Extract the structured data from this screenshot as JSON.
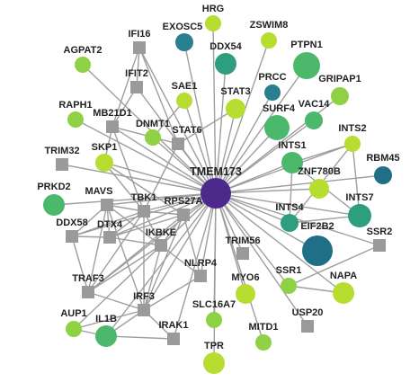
{
  "colors": {
    "hub": "#4b2a8c",
    "edge": "#9e9e9e",
    "square": "#9a9a9a",
    "yellow": "#b6dd2f",
    "lime": "#8fd144",
    "green": "#4cb86c",
    "teal_green": "#2e9e7e",
    "teal": "#2a7f8e",
    "dark_teal": "#1f6f86"
  },
  "hub": "TMEM173",
  "nodes": [
    {
      "id": "TMEM173",
      "label": "TMEM173",
      "shape": "circle",
      "color": "hub"
    },
    {
      "id": "HRG",
      "label": "HRG",
      "shape": "circle",
      "color": "yellow"
    },
    {
      "id": "EXOSC5",
      "label": "EXOSC5",
      "shape": "circle",
      "color": "teal"
    },
    {
      "id": "ZSWIM8",
      "label": "ZSWIM8",
      "shape": "circle",
      "color": "yellow"
    },
    {
      "id": "IFI16",
      "label": "IFI16",
      "shape": "square",
      "color": "square"
    },
    {
      "id": "DDX54",
      "label": "DDX54",
      "shape": "circle",
      "color": "teal_green"
    },
    {
      "id": "PTPN1",
      "label": "PTPN1",
      "shape": "circle",
      "color": "green"
    },
    {
      "id": "AGPAT2",
      "label": "AGPAT2",
      "shape": "circle",
      "color": "lime"
    },
    {
      "id": "IFIT2",
      "label": "IFIT2",
      "shape": "square",
      "color": "square"
    },
    {
      "id": "PRCC",
      "label": "PRCC",
      "shape": "circle",
      "color": "teal"
    },
    {
      "id": "GRIPAP1",
      "label": "GRIPAP1",
      "shape": "circle",
      "color": "lime"
    },
    {
      "id": "SAE1",
      "label": "SAE1",
      "shape": "circle",
      "color": "yellow"
    },
    {
      "id": "STAT3",
      "label": "STAT3",
      "shape": "circle",
      "color": "yellow"
    },
    {
      "id": "SURF4",
      "label": "SURF4",
      "shape": "circle",
      "color": "green"
    },
    {
      "id": "VAC14",
      "label": "VAC14",
      "shape": "circle",
      "color": "green"
    },
    {
      "id": "RAPH1",
      "label": "RAPH1",
      "shape": "circle",
      "color": "lime"
    },
    {
      "id": "MB21D1",
      "label": "MB21D1",
      "shape": "square",
      "color": "square"
    },
    {
      "id": "DNMT1",
      "label": "DNMT1",
      "shape": "circle",
      "color": "lime"
    },
    {
      "id": "STAT6",
      "label": "STAT6",
      "shape": "square",
      "color": "square"
    },
    {
      "id": "INTS1",
      "label": "INTS1",
      "shape": "circle",
      "color": "green"
    },
    {
      "id": "INTS2",
      "label": "INTS2",
      "shape": "circle",
      "color": "yellow"
    },
    {
      "id": "TRIM32",
      "label": "TRIM32",
      "shape": "square",
      "color": "square"
    },
    {
      "id": "SKP1",
      "label": "SKP1",
      "shape": "circle",
      "color": "yellow"
    },
    {
      "id": "ZNF780B",
      "label": "ZNF780B",
      "shape": "circle",
      "color": "yellow"
    },
    {
      "id": "RBM45",
      "label": "RBM45",
      "shape": "circle",
      "color": "dark_teal"
    },
    {
      "id": "PRKD2",
      "label": "PRKD2",
      "shape": "circle",
      "color": "green"
    },
    {
      "id": "MAVS",
      "label": "MAVS",
      "shape": "square",
      "color": "square"
    },
    {
      "id": "TBK1",
      "label": "TBK1",
      "shape": "square",
      "color": "square"
    },
    {
      "id": "INTS7",
      "label": "INTS7",
      "shape": "circle",
      "color": "teal_green"
    },
    {
      "id": "DDX58",
      "label": "DDX58",
      "shape": "square",
      "color": "square"
    },
    {
      "id": "DTX4",
      "label": "DTX4",
      "shape": "square",
      "color": "square"
    },
    {
      "id": "RPS27A",
      "label": "RPS27A",
      "shape": "square",
      "color": "square"
    },
    {
      "id": "INTS4",
      "label": "INTS4",
      "shape": "circle",
      "color": "teal_green"
    },
    {
      "id": "EIF2B2",
      "label": "EIF2B2",
      "shape": "circle",
      "color": "dark_teal"
    },
    {
      "id": "SSR2",
      "label": "SSR2",
      "shape": "square",
      "color": "square"
    },
    {
      "id": "IKBKE",
      "label": "IKBKE",
      "shape": "square",
      "color": "square"
    },
    {
      "id": "TRIM56",
      "label": "TRIM56",
      "shape": "square",
      "color": "square"
    },
    {
      "id": "NLRP4",
      "label": "NLRP4",
      "shape": "square",
      "color": "square"
    },
    {
      "id": "TRAF3",
      "label": "TRAF3",
      "shape": "square",
      "color": "square"
    },
    {
      "id": "SSR1",
      "label": "SSR1",
      "shape": "circle",
      "color": "lime"
    },
    {
      "id": "NAPA",
      "label": "NAPA",
      "shape": "circle",
      "color": "yellow"
    },
    {
      "id": "MYO6",
      "label": "MYO6",
      "shape": "circle",
      "color": "yellow"
    },
    {
      "id": "IRF3",
      "label": "IRF3",
      "shape": "square",
      "color": "square"
    },
    {
      "id": "AUP1",
      "label": "AUP1",
      "shape": "circle",
      "color": "lime"
    },
    {
      "id": "IL1B",
      "label": "IL1B",
      "shape": "circle",
      "color": "green"
    },
    {
      "id": "SLC16A7",
      "label": "SLC16A7",
      "shape": "circle",
      "color": "lime"
    },
    {
      "id": "USP20",
      "label": "USP20",
      "shape": "square",
      "color": "square"
    },
    {
      "id": "IRAK1",
      "label": "IRAK1",
      "shape": "square",
      "color": "square"
    },
    {
      "id": "MITD1",
      "label": "MITD1",
      "shape": "circle",
      "color": "lime"
    },
    {
      "id": "TPR",
      "label": "TPR",
      "shape": "circle",
      "color": "yellow"
    }
  ],
  "edges": [
    [
      "TMEM173",
      "HRG"
    ],
    [
      "TMEM173",
      "EXOSC5"
    ],
    [
      "TMEM173",
      "ZSWIM8"
    ],
    [
      "TMEM173",
      "IFI16"
    ],
    [
      "TMEM173",
      "DDX54"
    ],
    [
      "TMEM173",
      "PTPN1"
    ],
    [
      "TMEM173",
      "AGPAT2"
    ],
    [
      "TMEM173",
      "IFIT2"
    ],
    [
      "TMEM173",
      "PRCC"
    ],
    [
      "TMEM173",
      "GRIPAP1"
    ],
    [
      "TMEM173",
      "SAE1"
    ],
    [
      "TMEM173",
      "STAT3"
    ],
    [
      "TMEM173",
      "SURF4"
    ],
    [
      "TMEM173",
      "VAC14"
    ],
    [
      "TMEM173",
      "RAPH1"
    ],
    [
      "TMEM173",
      "MB21D1"
    ],
    [
      "TMEM173",
      "DNMT1"
    ],
    [
      "TMEM173",
      "STAT6"
    ],
    [
      "TMEM173",
      "INTS1"
    ],
    [
      "TMEM173",
      "INTS2"
    ],
    [
      "TMEM173",
      "TRIM32"
    ],
    [
      "TMEM173",
      "SKP1"
    ],
    [
      "TMEM173",
      "ZNF780B"
    ],
    [
      "TMEM173",
      "RBM45"
    ],
    [
      "TMEM173",
      "PRKD2"
    ],
    [
      "TMEM173",
      "MAVS"
    ],
    [
      "TMEM173",
      "TBK1"
    ],
    [
      "TMEM173",
      "INTS7"
    ],
    [
      "TMEM173",
      "DDX58"
    ],
    [
      "TMEM173",
      "DTX4"
    ],
    [
      "TMEM173",
      "RPS27A"
    ],
    [
      "TMEM173",
      "INTS4"
    ],
    [
      "TMEM173",
      "EIF2B2"
    ],
    [
      "TMEM173",
      "SSR2"
    ],
    [
      "TMEM173",
      "IKBKE"
    ],
    [
      "TMEM173",
      "TRIM56"
    ],
    [
      "TMEM173",
      "NLRP4"
    ],
    [
      "TMEM173",
      "TRAF3"
    ],
    [
      "TMEM173",
      "SSR1"
    ],
    [
      "TMEM173",
      "NAPA"
    ],
    [
      "TMEM173",
      "MYO6"
    ],
    [
      "TMEM173",
      "IRF3"
    ],
    [
      "TMEM173",
      "AUP1"
    ],
    [
      "TMEM173",
      "IL1B"
    ],
    [
      "TMEM173",
      "SLC16A7"
    ],
    [
      "TMEM173",
      "USP20"
    ],
    [
      "TMEM173",
      "IRAK1"
    ],
    [
      "TMEM173",
      "MITD1"
    ],
    [
      "TMEM173",
      "TPR"
    ],
    [
      "IFI16",
      "IFIT2"
    ],
    [
      "IFI16",
      "MB21D1"
    ],
    [
      "IFI16",
      "STAT6"
    ],
    [
      "IFIT2",
      "MB21D1"
    ],
    [
      "MB21D1",
      "STAT6"
    ],
    [
      "MB21D1",
      "TBK1"
    ],
    [
      "MB21D1",
      "SKP1"
    ],
    [
      "STAT3",
      "STAT6"
    ],
    [
      "SAE1",
      "DNMT1"
    ],
    [
      "STAT6",
      "TBK1"
    ],
    [
      "SKP1",
      "TBK1"
    ],
    [
      "SKP1",
      "RPS27A"
    ],
    [
      "TBK1",
      "MAVS"
    ],
    [
      "TBK1",
      "DTX4"
    ],
    [
      "TBK1",
      "RPS27A"
    ],
    [
      "TBK1",
      "IKBKE"
    ],
    [
      "TBK1",
      "IRF3"
    ],
    [
      "TBK1",
      "TRAF3"
    ],
    [
      "TBK1",
      "DDX58"
    ],
    [
      "MAVS",
      "DDX58"
    ],
    [
      "MAVS",
      "DTX4"
    ],
    [
      "MAVS",
      "TRAF3"
    ],
    [
      "MAVS",
      "IKBKE"
    ],
    [
      "MAVS",
      "IRF3"
    ],
    [
      "DDX58",
      "DTX4"
    ],
    [
      "DDX58",
      "TRAF3"
    ],
    [
      "DTX4",
      "IKBKE"
    ],
    [
      "DTX4",
      "RPS27A"
    ],
    [
      "RPS27A",
      "IKBKE"
    ],
    [
      "RPS27A",
      "NLRP4"
    ],
    [
      "RPS27A",
      "IRF3"
    ],
    [
      "RPS27A",
      "TRAF3"
    ],
    [
      "IKBKE",
      "IRF3"
    ],
    [
      "IKBKE",
      "TRAF3"
    ],
    [
      "IKBKE",
      "NLRP4"
    ],
    [
      "TRAF3",
      "IRF3"
    ],
    [
      "IRF3",
      "IRAK1"
    ],
    [
      "IRF3",
      "IL1B"
    ],
    [
      "IRF3",
      "AUP1"
    ],
    [
      "IL1B",
      "IRAK1"
    ],
    [
      "IL1B",
      "AUP1"
    ],
    [
      "NLRP4",
      "IRF3"
    ],
    [
      "INTS1",
      "INTS2"
    ],
    [
      "INTS1",
      "INTS4"
    ],
    [
      "INTS1",
      "INTS7"
    ],
    [
      "INTS2",
      "INTS7"
    ],
    [
      "INTS4",
      "INTS7"
    ],
    [
      "INTS2",
      "INTS4"
    ],
    [
      "SSR1",
      "SSR2"
    ],
    [
      "SSR1",
      "NAPA"
    ]
  ]
}
